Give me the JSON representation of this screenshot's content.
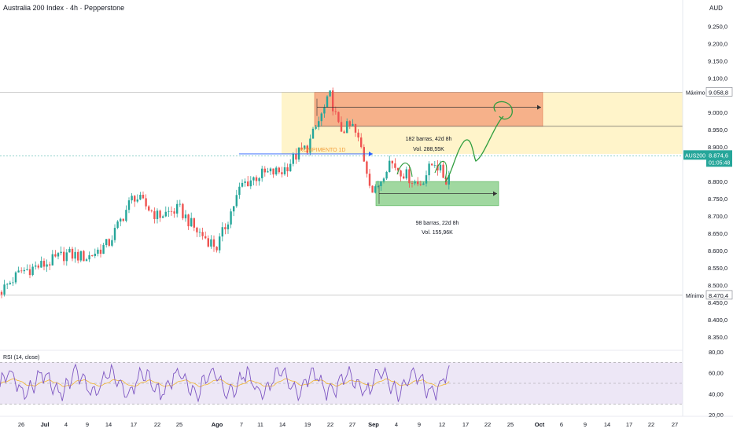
{
  "header": {
    "title": "Australia 200 Index · 4h · Pepperstone",
    "currency": "AUD"
  },
  "colors": {
    "up": "#26a69a",
    "down": "#ef5350",
    "zone_yellow": "#fff3c4",
    "zone_orange": "#f5a57f",
    "zone_green": "#8fd18f",
    "projection": "#2e9d3e",
    "breakout_line": "#2962ff",
    "rsi_line": "#7e57c2",
    "rsi_ma": "#f2b630",
    "rsi_band": "#ede7f6",
    "price_tag": "#26a69a"
  },
  "price_scale": {
    "ticks": [
      "9.250,0",
      "9.200,0",
      "9.150,0",
      "9.100,0",
      "9.000,0",
      "8.950,0",
      "8.900,0",
      "8.800,0",
      "8.750,0",
      "8.700,0",
      "8.650,0",
      "8.600,0",
      "8.550,0",
      "8.500,0",
      "8.450,0",
      "8.400,0",
      "8.350,0"
    ],
    "max_label": "Máximo",
    "max_value": "9.058,8",
    "min_label": "Mínimo",
    "min_value": "8.470,4",
    "symbol_tag": "AUS200",
    "last_price": "8.874,6",
    "countdown": "01:05:48"
  },
  "rsi": {
    "label": "RSI (14, close)",
    "ticks": [
      "80,00",
      "60,00",
      "40,00",
      "20,00"
    ]
  },
  "time_axis": [
    "26",
    "Jul",
    "4",
    "9",
    "14",
    "17",
    "22",
    "25",
    "Ago",
    "7",
    "11",
    "14",
    "19",
    "22",
    "27",
    "Sep",
    "4",
    "9",
    "12",
    "17",
    "22",
    "25",
    "Oct",
    "6",
    "9",
    "14",
    "17",
    "22",
    "27"
  ],
  "annotations": {
    "breakout_label": "ROMPIMENTO 1D",
    "range_upper_bars": "182 barras, 42d 8h",
    "range_upper_vol": "Vol. 288,55K",
    "range_lower_bars": "98 barras, 22d 8h",
    "range_lower_vol": "Vol. 155,96K"
  },
  "chart_data": {
    "type": "candlestick",
    "symbol": "AUS200",
    "interval": "4h",
    "currency": "AUD",
    "ylim": [
      8320,
      9285
    ],
    "last_price": 8874.6,
    "period_high": 9058.8,
    "period_low": 8470.4,
    "trend_waypoints": [
      {
        "x": "Jun 24",
        "close": 8480
      },
      {
        "x": "Jun 26",
        "close": 8540
      },
      {
        "x": "Jul 1",
        "close": 8560
      },
      {
        "x": "Jul 4",
        "close": 8590
      },
      {
        "x": "Jul 9",
        "close": 8580
      },
      {
        "x": "Jul 14",
        "close": 8620
      },
      {
        "x": "Jul 17",
        "close": 8760
      },
      {
        "x": "Jul 22",
        "close": 8700
      },
      {
        "x": "Jul 25",
        "close": 8720
      },
      {
        "x": "Jul 28",
        "close": 8660
      },
      {
        "x": "Aug 1",
        "close": 8610
      },
      {
        "x": "Aug 4",
        "close": 8700
      },
      {
        "x": "Aug 7",
        "close": 8790
      },
      {
        "x": "Aug 11",
        "close": 8820
      },
      {
        "x": "Aug 14",
        "close": 8830
      },
      {
        "x": "Aug 17",
        "close": 8880
      },
      {
        "x": "Aug 19",
        "close": 8900
      },
      {
        "x": "Aug 22",
        "close": 9050
      },
      {
        "x": "Aug 24",
        "close": 8950
      },
      {
        "x": "Aug 27",
        "close": 8960
      },
      {
        "x": "Aug 29",
        "close": 8900
      },
      {
        "x": "Sep 1",
        "close": 8760
      },
      {
        "x": "Sep 3",
        "close": 8860
      },
      {
        "x": "Sep 6",
        "close": 8820
      },
      {
        "x": "Sep 9",
        "close": 8790
      },
      {
        "x": "Sep 11",
        "close": 8860
      },
      {
        "x": "Sep 13",
        "close": 8800
      },
      {
        "x": "Sep 15",
        "close": 8875
      }
    ],
    "zones": [
      {
        "name": "upper range",
        "from": "Aug 14",
        "to": "Sep 30",
        "low": 8880,
        "high": 9058.8,
        "color": "#fff3c4"
      },
      {
        "name": "resistance",
        "from": "Aug 19",
        "to": "Sep 30",
        "low": 8960,
        "high": 9058.8,
        "color": "#f5a57f"
      },
      {
        "name": "support",
        "from": "Sep 1",
        "to": "Sep 25",
        "low": 8730,
        "high": 8800,
        "color": "#8fd18f"
      }
    ],
    "projection": [
      {
        "x": "Sep 15",
        "y": 8880
      },
      {
        "x": "Sep 19",
        "y": 8930
      },
      {
        "x": "Sep 23",
        "y": 8890
      },
      {
        "x": "Sep 28",
        "y": 9000
      }
    ],
    "rsi": {
      "period": 14,
      "bands": [
        70,
        30
      ],
      "midline": 50,
      "ylim": [
        20,
        80
      ],
      "last_value": 60
    }
  }
}
